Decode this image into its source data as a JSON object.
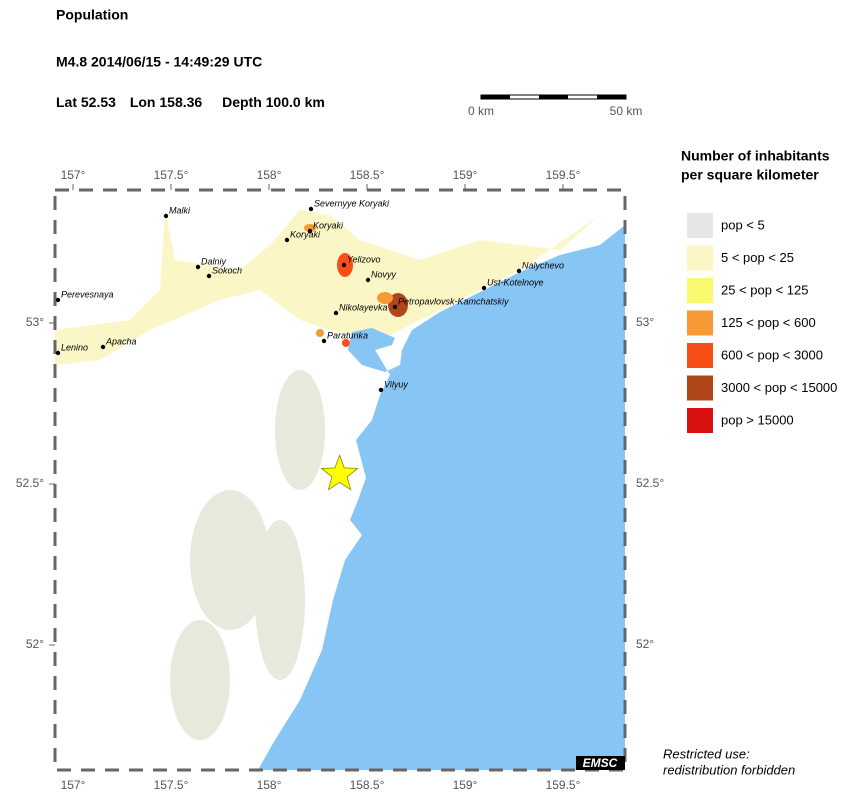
{
  "header": {
    "title": "Population",
    "event": "M4.8  2014/06/15 - 14:49:29 UTC",
    "lat_label": "Lat",
    "lat": 52.53,
    "lon_label": "Lon",
    "lon": 158.36,
    "depth": "Depth 100.0 km"
  },
  "scale_bar": {
    "start": "0 km",
    "end": "50 km"
  },
  "map": {
    "lon_ticks": [
      {
        "value": 157,
        "label": "157°"
      },
      {
        "value": 157.5,
        "label": "157.5°"
      },
      {
        "value": 158,
        "label": "158°"
      },
      {
        "value": 158.5,
        "label": "158.5°"
      },
      {
        "value": 159,
        "label": "159°"
      },
      {
        "value": 159.5,
        "label": "159.5°"
      }
    ],
    "lat_ticks": [
      {
        "value": 53,
        "label": "53°"
      },
      {
        "value": 52.5,
        "label": "52.5°"
      },
      {
        "value": 52,
        "label": "52°"
      }
    ],
    "cities": [
      "Malki",
      "Severnyye Koryaki",
      "Koryaki",
      "Koryaki",
      "Dalniy",
      "Sokoch",
      "Perevesnaya",
      "Lenino",
      "Apacha",
      "Yelizovo",
      "Novyy",
      "Nalychevo",
      "Ust-Kotelnoye",
      "Petropavlovsk-Kamchatskiy",
      "Nikolayevka",
      "Paratunka",
      "Vilyuy"
    ],
    "badge": "EMSC"
  },
  "legend": {
    "title": [
      "Number of inhabitants",
      "per square kilometer"
    ],
    "items": [
      {
        "label": "pop < 5",
        "color": "#e6e6e6"
      },
      {
        "label": "5 < pop < 25",
        "color": "#fbf6c6"
      },
      {
        "label": "25 < pop < 125",
        "color": "#f9f871"
      },
      {
        "label": "125 < pop < 600",
        "color": "#f79a34"
      },
      {
        "label": "600 < pop < 3000",
        "color": "#f84e17"
      },
      {
        "label": "3000 < pop < 15000",
        "color": "#b1461a"
      },
      {
        "label": "pop > 15000",
        "color": "#d8100f"
      }
    ]
  },
  "footer": [
    "Restricted use:",
    "redistribution forbidden"
  ]
}
